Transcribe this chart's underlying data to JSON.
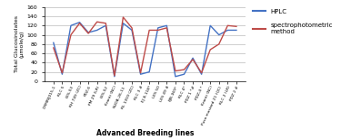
{
  "categories": [
    "DRMRIJ015-1",
    "RLC 5",
    "LES-53",
    "RH 749 (ZC)",
    "PDZ-6",
    "PM 29 (LR)",
    "LES-52",
    "Kranti (NC)",
    "NUDB-26-11",
    "RL 1359 (ZC)",
    "RLC 3 #",
    "EJ 8-118*",
    "LES 50",
    "LES 49 #",
    "EJB-369*",
    "RLC 4*",
    "PDZ 1 *#",
    "PDZ-4 *",
    "Kranti (NC)",
    "Pusa mustard 21 (QC)",
    "RLC 2 (LR)",
    "PDZ 2 #"
  ],
  "hplc": [
    83,
    15,
    120,
    127,
    105,
    110,
    120,
    10,
    125,
    110,
    15,
    20,
    115,
    120,
    10,
    15,
    50,
    15,
    120,
    100,
    110,
    110
  ],
  "spectro": [
    72,
    18,
    100,
    125,
    103,
    128,
    125,
    12,
    138,
    115,
    18,
    110,
    110,
    115,
    22,
    25,
    47,
    18,
    68,
    80,
    120,
    118
  ],
  "hplc_color": "#4472C4",
  "spectro_color": "#BE4B48",
  "ylabel": "Total Glucosinolates\n(μmole/g)",
  "xlabel": "Advanced Breeding lines",
  "ylim": [
    0,
    160
  ],
  "yticks": [
    0,
    20,
    40,
    60,
    80,
    100,
    120,
    140,
    160
  ],
  "legend_hplc": "HPLC",
  "legend_spectro": "spectrophotometric\nmethod",
  "grid_color": "#BBBBBB"
}
